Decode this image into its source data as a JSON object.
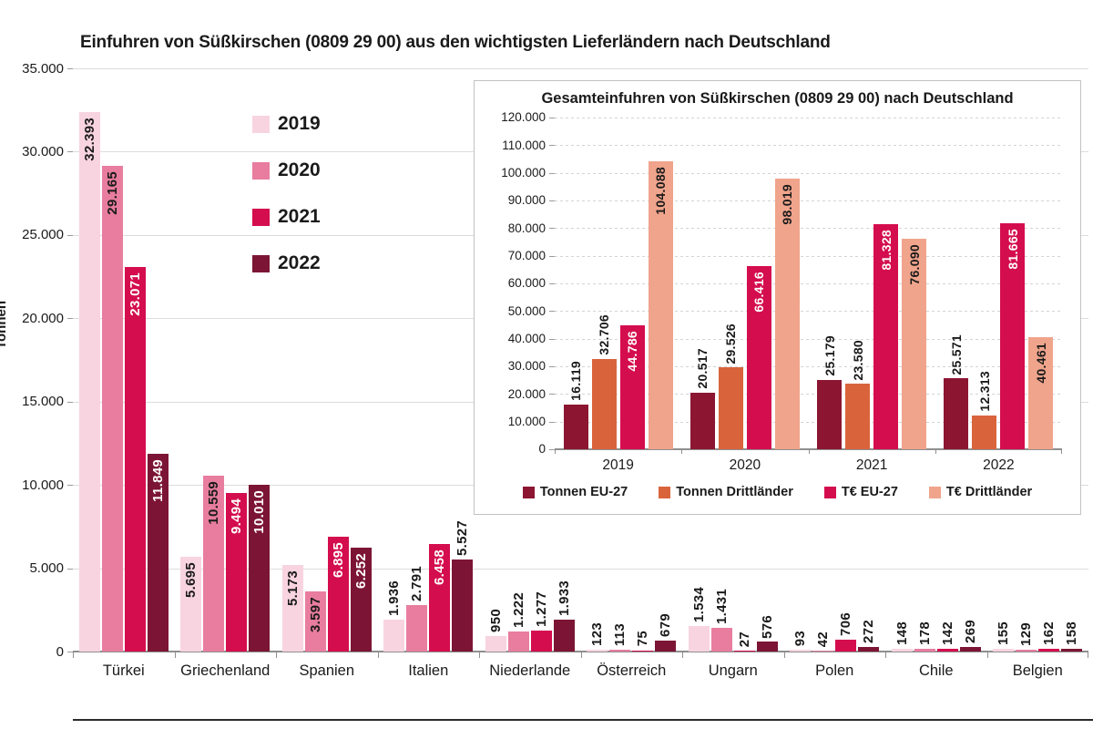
{
  "page": {
    "main_title": "Einfuhren von Süßkirschen (0809 29 00) aus den wichtigsten Lieferländern nach Deutschland"
  },
  "chart_data": [
    {
      "id": "main",
      "type": "bar",
      "title": "Einfuhren von Süßkirschen (0809 29 00) aus den wichtigsten Lieferländern nach Deutschland",
      "xlabel": "",
      "ylabel": "Tonnen",
      "ylim": [
        0,
        35000
      ],
      "grid": true,
      "legend_position": "top-left-inside",
      "ytick_values": [
        0,
        5000,
        10000,
        15000,
        20000,
        25000,
        30000,
        35000
      ],
      "ytick_labels": [
        "0",
        "5.000",
        "10.000",
        "15.000",
        "20.000",
        "25.000",
        "30.000",
        "35.000"
      ],
      "categories": [
        "Türkei",
        "Griechenland",
        "Spanien",
        "Italien",
        "Niederlande",
        "Österreich",
        "Ungarn",
        "Polen",
        "Chile",
        "Belgien"
      ],
      "series": [
        {
          "name": "2019",
          "color": "#F8D4E0",
          "inside_text_color": "#1a1a1a",
          "values": [
            32393,
            5695,
            5173,
            1936,
            950,
            123,
            1534,
            93,
            148,
            155
          ],
          "labels": [
            "32.393",
            "5.695",
            "5.173",
            "1.936",
            "950",
            "123",
            "1.534",
            "93",
            "148",
            "155"
          ],
          "label_inside": [
            true,
            true,
            true,
            false,
            false,
            false,
            false,
            false,
            false,
            false
          ]
        },
        {
          "name": "2020",
          "color": "#E87D9F",
          "inside_text_color": "#1a1a1a",
          "values": [
            29165,
            10559,
            3597,
            2791,
            1222,
            113,
            1431,
            42,
            178,
            129
          ],
          "labels": [
            "29.165",
            "10.559",
            "3.597",
            "2.791",
            "1.222",
            "113",
            "1.431",
            "42",
            "178",
            "129"
          ],
          "label_inside": [
            true,
            true,
            true,
            false,
            false,
            false,
            false,
            false,
            false,
            false
          ]
        },
        {
          "name": "2021",
          "color": "#D40D4E",
          "inside_text_color": "#ffffff",
          "values": [
            23071,
            9494,
            6895,
            6458,
            1277,
            75,
            27,
            706,
            142,
            162
          ],
          "labels": [
            "23.071",
            "9.494",
            "6.895",
            "6.458",
            "1.277",
            "75",
            "27",
            "706",
            "142",
            "162"
          ],
          "label_inside": [
            true,
            true,
            true,
            true,
            false,
            false,
            false,
            false,
            false,
            false
          ]
        },
        {
          "name": "2022",
          "color": "#7C1535",
          "inside_text_color": "#ffffff",
          "values": [
            11849,
            10010,
            6252,
            5527,
            1933,
            679,
            576,
            272,
            269,
            158
          ],
          "labels": [
            "11.849",
            "10.010",
            "6.252",
            "5.527",
            "1.933",
            "679",
            "576",
            "272",
            "269",
            "158"
          ],
          "label_inside": [
            true,
            true,
            true,
            false,
            false,
            false,
            false,
            false,
            false,
            false
          ]
        }
      ]
    },
    {
      "id": "inset",
      "type": "bar",
      "title": "Gesamteinfuhren von Süßkirschen (0809 29 00) nach Deutschland",
      "xlabel": "",
      "ylabel": "",
      "ylim": [
        0,
        120000
      ],
      "grid": true,
      "legend_position": "bottom",
      "ytick_values": [
        0,
        10000,
        20000,
        30000,
        40000,
        50000,
        60000,
        70000,
        80000,
        90000,
        100000,
        110000,
        120000
      ],
      "ytick_labels": [
        "0",
        "10.000",
        "20.000",
        "30.000",
        "40.000",
        "50.000",
        "60.000",
        "70.000",
        "80.000",
        "90.000",
        "100.000",
        "110.000",
        "120.000"
      ],
      "categories": [
        "2019",
        "2020",
        "2021",
        "2022"
      ],
      "series": [
        {
          "name": "Tonnen EU-27",
          "color": "#8C1631",
          "inside_text_color": "#ffffff",
          "values": [
            16119,
            20517,
            25179,
            25571
          ],
          "labels": [
            "16.119",
            "20.517",
            "25.179",
            "25.571"
          ],
          "label_inside": [
            false,
            false,
            false,
            false
          ]
        },
        {
          "name": "Tonnen Drittländer",
          "color": "#D9643C",
          "inside_text_color": "#1a1a1a",
          "values": [
            32706,
            29526,
            23580,
            12313
          ],
          "labels": [
            "32.706",
            "29.526",
            "23.580",
            "12.313"
          ],
          "label_inside": [
            false,
            false,
            false,
            false
          ]
        },
        {
          "name": "T€ EU-27",
          "color": "#D40D4E",
          "inside_text_color": "#ffffff",
          "values": [
            44786,
            66416,
            81328,
            81665
          ],
          "labels": [
            "44.786",
            "66.416",
            "81.328",
            "81.665"
          ],
          "label_inside": [
            true,
            true,
            true,
            true
          ]
        },
        {
          "name": "T€ Drittländer",
          "color": "#F0A48C",
          "inside_text_color": "#1a1a1a",
          "values": [
            104088,
            98019,
            76090,
            40461
          ],
          "labels": [
            "104.088",
            "98.019",
            "76.090",
            "40.461"
          ],
          "label_inside": [
            true,
            true,
            true,
            true
          ]
        }
      ]
    }
  ]
}
